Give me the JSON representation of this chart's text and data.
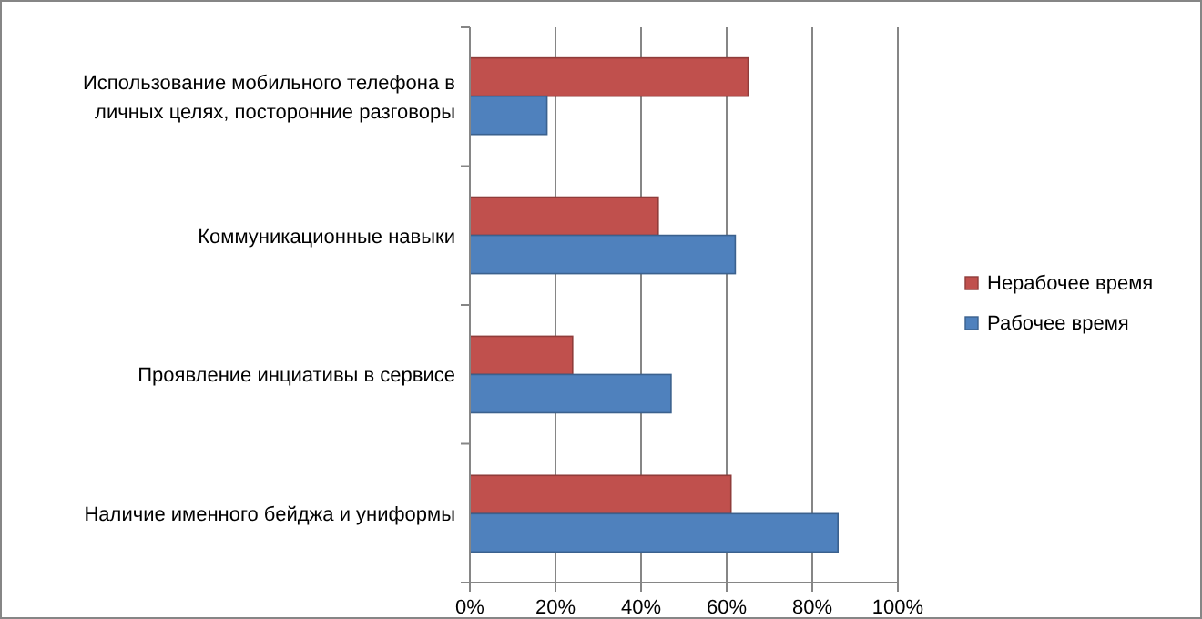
{
  "chart_data": {
    "type": "bar",
    "orientation": "horizontal",
    "categories": [
      "Использование мобильного телефона в личных целях, посторонние разговоры",
      "Коммуникационные навыки",
      "Проявление инциативы в сервисе",
      "Наличие именного бейджа и униформы"
    ],
    "series": [
      {
        "name": "Нерабочее время",
        "color": "#c0504d",
        "values": [
          65,
          44,
          24,
          61
        ]
      },
      {
        "name": "Рабочее время",
        "color": "#4f81bd",
        "values": [
          18,
          62,
          47,
          86
        ]
      }
    ],
    "xlim": [
      0,
      100
    ],
    "xticks": [
      {
        "value": 0,
        "label": "0%"
      },
      {
        "value": 20,
        "label": "20%"
      },
      {
        "value": 40,
        "label": "40%"
      },
      {
        "value": 60,
        "label": "60%"
      },
      {
        "value": 80,
        "label": "80%"
      },
      {
        "value": 100,
        "label": "100%"
      }
    ],
    "grid": "x",
    "legend": "right"
  }
}
